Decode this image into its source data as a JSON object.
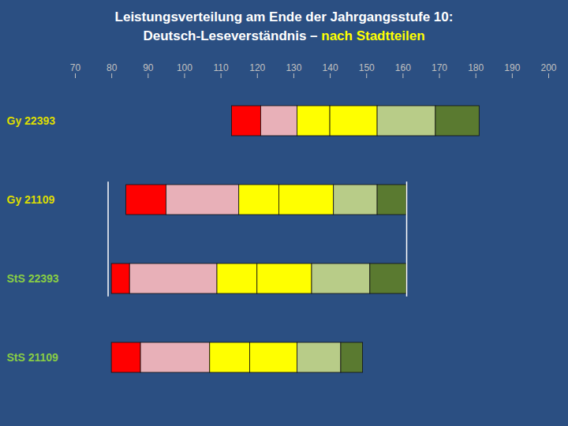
{
  "chart_data": {
    "type": "bar",
    "orientation": "horizontal",
    "title": "Leistungsverteilung am Ende der Jahrgangsstufe 10:",
    "title_color": "#ffffff",
    "subtitle": [
      {
        "text": "Deutsch-Leseverständnis – ",
        "color": "#ffffff"
      },
      {
        "text": "nach Stadtteilen",
        "color": "#ffff00"
      }
    ],
    "background_color": "#2b4f82",
    "categories": [
      "StS 21109",
      "StS 22393",
      "Gy 21109",
      "Gy 22393"
    ],
    "category_colors": [
      "#88cc44",
      "#88cc44",
      "#dddd00",
      "#dddd00"
    ],
    "series": [
      {
        "color": "#ff0000",
        "start": [
          80,
          80,
          84,
          113
        ],
        "end": [
          88,
          85,
          95,
          121
        ]
      },
      {
        "color": "#e8b0b8",
        "start": [
          88,
          85,
          95,
          121
        ],
        "end": [
          107,
          109,
          115,
          131
        ]
      },
      {
        "color": "#ffff00",
        "start": [
          107,
          109,
          115,
          131
        ],
        "end": [
          118,
          120,
          126,
          140
        ]
      },
      {
        "color": "#ffff00",
        "start": [
          118,
          120,
          126,
          140
        ],
        "end": [
          131,
          135,
          141,
          153
        ]
      },
      {
        "color": "#b8cc88",
        "start": [
          131,
          135,
          141,
          153
        ],
        "end": [
          143,
          151,
          153,
          169
        ]
      },
      {
        "color": "#5a7a30",
        "start": [
          143,
          151,
          153,
          169
        ],
        "end": [
          149,
          161,
          161,
          181
        ]
      }
    ],
    "edge_color": "#111111",
    "bracket": {
      "start": 79,
      "end": 161,
      "from": "StS 22393",
      "to": "Gy 21109",
      "color": "#ffffff"
    },
    "xlim": [
      70,
      200
    ],
    "xticks": [
      70,
      80,
      90,
      100,
      110,
      120,
      130,
      140,
      150,
      160,
      170,
      180,
      190,
      200
    ],
    "tick_color": "#c0c0c0",
    "grid": false
  }
}
